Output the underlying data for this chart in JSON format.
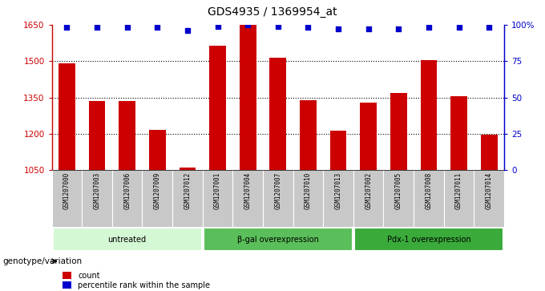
{
  "title": "GDS4935 / 1369954_at",
  "samples": [
    "GSM1207000",
    "GSM1207003",
    "GSM1207006",
    "GSM1207009",
    "GSM1207012",
    "GSM1207001",
    "GSM1207004",
    "GSM1207007",
    "GSM1207010",
    "GSM1207013",
    "GSM1207002",
    "GSM1207005",
    "GSM1207008",
    "GSM1207011",
    "GSM1207014"
  ],
  "counts": [
    1490,
    1335,
    1335,
    1215,
    1062,
    1565,
    1648,
    1515,
    1340,
    1212,
    1330,
    1370,
    1505,
    1355,
    1195
  ],
  "percentiles": [
    98,
    98,
    98,
    98,
    96,
    99,
    100,
    99,
    98,
    97,
    97,
    97,
    98,
    98,
    98
  ],
  "groups": [
    {
      "label": "untreated",
      "start": 0,
      "end": 5,
      "color": "#d4f7d4"
    },
    {
      "label": "β-gal overexpression",
      "start": 5,
      "end": 10,
      "color": "#5abf5a"
    },
    {
      "label": "Pdx-1 overexpression",
      "start": 10,
      "end": 15,
      "color": "#3aaa3a"
    }
  ],
  "ymin": 1050,
  "ymax": 1650,
  "yticks": [
    1050,
    1200,
    1350,
    1500,
    1650
  ],
  "ytick_labels": [
    "1050",
    "1200",
    "1350",
    "1500",
    "1650"
  ],
  "right_yticks": [
    0,
    25,
    50,
    75,
    100
  ],
  "right_ytick_labels": [
    "0",
    "25",
    "50",
    "75",
    "100%"
  ],
  "bar_color": "#cc0000",
  "dot_color": "#0000cc",
  "left_axis_color": "#cc0000",
  "right_axis_color": "#0000cc",
  "grid_color": "#000000",
  "sample_bg_color": "#c8c8c8",
  "legend_count_label": "count",
  "legend_percentile_label": "percentile rank within the sample",
  "genotype_label": "genotype/variation"
}
